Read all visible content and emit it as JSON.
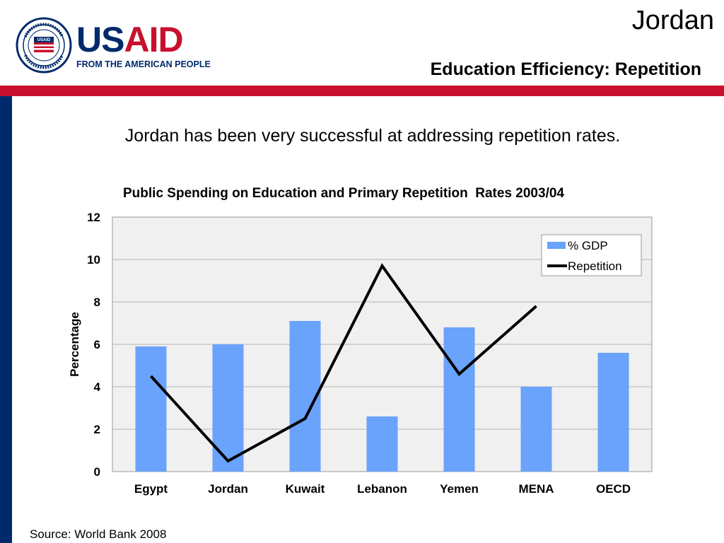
{
  "header": {
    "logo_word_us": "US",
    "logo_word_aid": "AID",
    "logo_tagline": "FROM THE AMERICAN PEOPLE",
    "seal_text": "UNITED STATES AGENCY · INTERNATIONAL DEVELOPMENT",
    "title": "Jordan",
    "subtitle": "Education Efficiency: Repetition"
  },
  "body": {
    "intro": "Jordan has been very successful at addressing repetition rates."
  },
  "footer": {
    "source": "Source: World Bank 2008"
  },
  "colors": {
    "brand_blue": "#002a6c",
    "brand_red": "#c8102e",
    "bar_fill": "#6aa3fb",
    "line": "#000000",
    "plot_bg": "#f0f0f0"
  },
  "chart_data": {
    "type": "bar",
    "title": "Public Spending on Education and Primary Repetition  Rates 2003/04",
    "xlabel": "",
    "ylabel": "Percentage",
    "ylim": [
      0,
      12
    ],
    "yticks": [
      "0",
      "2",
      "4",
      "6",
      "8",
      "10",
      "12"
    ],
    "categories": [
      "Egypt",
      "Jordan",
      "Kuwait",
      "Lebanon",
      "Yemen",
      "MENA",
      "OECD"
    ],
    "series": [
      {
        "name": "% GDP",
        "kind": "bar",
        "values": [
          5.9,
          6.0,
          7.1,
          2.6,
          6.8,
          4.0,
          5.6
        ]
      },
      {
        "name": "Repetition",
        "kind": "line",
        "values": [
          4.5,
          0.5,
          2.5,
          9.7,
          4.6,
          7.8,
          null
        ]
      }
    ],
    "grid": true,
    "legend": "top-right"
  }
}
